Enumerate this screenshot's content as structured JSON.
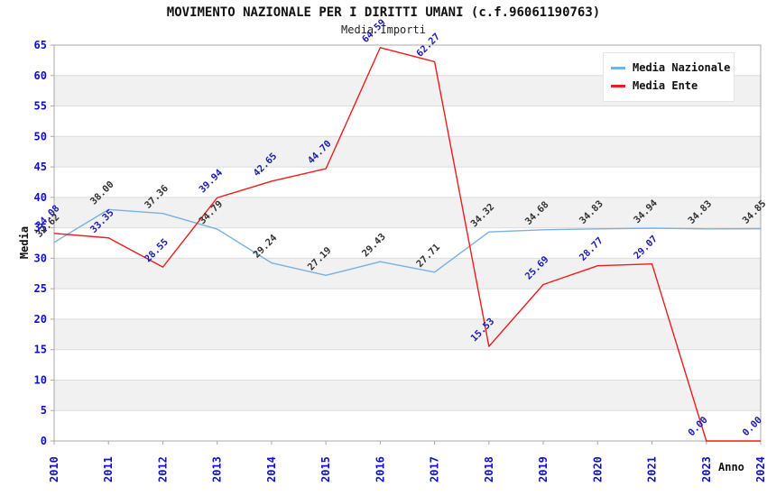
{
  "title": "MOVIMENTO NAZIONALE PER I DIRITTI UMANI (c.f.96061190763)",
  "subtitle": "Media Importi",
  "legend": {
    "items": [
      {
        "label": "Media Nazionale",
        "color": "#79B1E1"
      },
      {
        "label": "Media Ente",
        "color": "#EE1C1C"
      }
    ]
  },
  "chart_data": {
    "type": "line",
    "title": "MOVIMENTO NAZIONALE PER I DIRITTI UMANI (c.f.96061190763)",
    "subtitle": "Media Importi",
    "xlabel": "Anno",
    "ylabel": "Media",
    "ylim": [
      0,
      65
    ],
    "ytick_step": 5,
    "grid": "horizontal",
    "legend_position": "top-right",
    "band_colors": [
      "#FFFFFF",
      "#F1F1F1"
    ],
    "categories": [
      "2010",
      "2011",
      "2012",
      "2013",
      "2014",
      "2015",
      "2016",
      "2017",
      "2018",
      "2019",
      "2020",
      "2021",
      "2023",
      "2024"
    ],
    "series": [
      {
        "name": "Media Nazionale",
        "color": "#79B1E1",
        "label_color": "#333333",
        "values": [
          32.62,
          38.0,
          37.36,
          34.79,
          29.24,
          27.19,
          29.43,
          27.71,
          34.32,
          34.68,
          34.83,
          34.94,
          34.83,
          34.85
        ]
      },
      {
        "name": "Media Ente",
        "color": "#EE1C1C",
        "label_color": "#1C1CB0",
        "values": [
          34.08,
          33.35,
          28.55,
          39.94,
          42.65,
          44.7,
          64.59,
          62.27,
          15.53,
          25.69,
          28.77,
          29.07,
          0.0,
          0.0
        ]
      }
    ],
    "axis_text_color": "#0F0FCC",
    "frame_color": "#A8A8A8",
    "gridline_color": "#DCDCDC"
  }
}
